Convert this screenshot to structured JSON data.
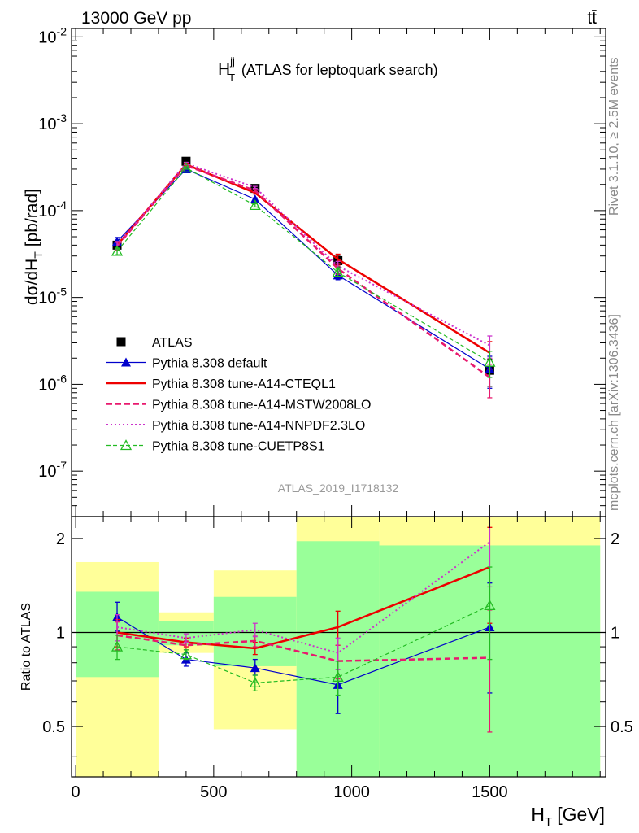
{
  "header": {
    "left": "13000 GeV pp",
    "right": "tt̄"
  },
  "side_labels": {
    "rivet": "Rivet 3.1.10, ≥ 2.5M events",
    "mcplots": "mcplots.cern.ch [arXiv:1306.3436]"
  },
  "chart_data": [
    {
      "type": "line",
      "title": "H_T^jj (ATLAS for leptoquark search)",
      "title_main": "H",
      "title_sub": "T",
      "title_sup": "jj",
      "title_rest": "(ATLAS for leptoquark search)",
      "ylabel": "dσ/dH_T [pb/rad]",
      "ylabel_main": "dσ/dH",
      "ylabel_sub": "T",
      "ylabel_rest": "[pb/rad]",
      "yscale": "log",
      "ylim": [
        3e-08,
        0.0125
      ],
      "xlim": [
        -15,
        1920
      ],
      "yticks": [
        1e-07,
        1e-06,
        1e-05,
        0.0001,
        0.001,
        0.01
      ],
      "ytick_labels": [
        {
          "base": "10",
          "exp": "-7"
        },
        {
          "base": "10",
          "exp": "-6"
        },
        {
          "base": "10",
          "exp": "-5"
        },
        {
          "base": "10",
          "exp": "-4"
        },
        {
          "base": "10",
          "exp": "-3"
        },
        {
          "base": "10",
          "exp": "-2"
        }
      ],
      "watermark": "ATLAS_2019_I1718132",
      "legend_position": "bottom-left",
      "x": [
        150,
        400,
        650,
        950,
        1500
      ],
      "series": [
        {
          "name": "ATLAS",
          "color": "#000000",
          "style": "data",
          "marker": "square",
          "values": [
            4e-05,
            0.00037,
            0.00018,
            2.65e-05,
            1.45e-06
          ],
          "err_low": [
            4e-06,
            2.5e-05,
            1.2e-05,
            4e-06,
            5e-07
          ],
          "err_high": [
            4e-06,
            2.5e-05,
            1.2e-05,
            4e-06,
            5e-07
          ]
        },
        {
          "name": "Pythia 8.308 default",
          "color": "#0000cc",
          "style": "solid",
          "marker": "triangle",
          "values": [
            4.4e-05,
            0.0003,
            0.000135,
            1.8e-05,
            1.5e-06
          ],
          "err_low": [
            5e-06,
            1e-05,
            5e-06,
            2e-06,
            6e-07
          ],
          "err_high": [
            5e-06,
            1e-05,
            5e-06,
            2e-06,
            6e-07
          ]
        },
        {
          "name": "Pythia 8.308 tune-A14-CTEQL1",
          "color": "#ee0000",
          "style": "solid-thick",
          "marker": "none",
          "values": [
            4e-05,
            0.00034,
            0.00016,
            2.75e-05,
            2.3e-06
          ],
          "err_low": [
            4e-06,
            1e-05,
            5e-06,
            4e-06,
            8e-07
          ],
          "err_high": [
            4e-06,
            1e-05,
            5e-06,
            4e-06,
            8e-07
          ]
        },
        {
          "name": "Pythia 8.308 tune-A14-MSTW2008LO",
          "color": "#e8196e",
          "style": "dashed",
          "marker": "none",
          "values": [
            3.9e-05,
            0.00033,
            0.00017,
            2.15e-05,
            1.2e-06
          ],
          "err_low": [
            4e-06,
            1e-05,
            5e-06,
            3e-06,
            5e-07
          ],
          "err_high": [
            4e-06,
            1e-05,
            5e-06,
            3e-06,
            5e-07
          ]
        },
        {
          "name": "Pythia 8.308 tune-A14-NNPDF2.3LO",
          "color": "#cc33cc",
          "style": "dotted",
          "marker": "none",
          "values": [
            4e-05,
            0.00035,
            0.000185,
            2.3e-05,
            2.8e-06
          ],
          "err_low": [
            4e-06,
            1e-05,
            5e-06,
            3e-06,
            8e-07
          ],
          "err_high": [
            4e-06,
            1e-05,
            5e-06,
            3e-06,
            8e-07
          ]
        },
        {
          "name": "Pythia 8.308 tune-CUETP8S1",
          "color": "#22bb22",
          "style": "dashed-thin",
          "marker": "open-triangle",
          "values": [
            3.4e-05,
            0.00031,
            0.000115,
            1.95e-05,
            1.8e-06
          ],
          "err_low": [
            3e-06,
            1e-05,
            5e-06,
            2e-06,
            6e-07
          ],
          "err_high": [
            3e-06,
            1e-05,
            5e-06,
            2e-06,
            6e-07
          ]
        }
      ]
    },
    {
      "type": "line",
      "ylabel": "Ratio to ATLAS",
      "yscale": "log",
      "ylim": [
        0.345,
        2.35
      ],
      "xlim": [
        -15,
        1920
      ],
      "xlabel": "H_T [GeV]",
      "xlabel_main": "H",
      "xlabel_sub": "T",
      "xlabel_rest": "[GeV]",
      "xticks": [
        0,
        500,
        1000,
        1500
      ],
      "xtick_labels": [
        "0",
        "500",
        "1000",
        "1500"
      ],
      "yticks": [
        0.5,
        1,
        2
      ],
      "ytick_labels": [
        "0.5",
        "1",
        "2"
      ],
      "reference_line": 1,
      "bands": [
        {
          "x0": 0,
          "x1": 300,
          "yellow": [
            0.28,
            1.68
          ],
          "green": [
            0.72,
            1.35
          ]
        },
        {
          "x0": 300,
          "x1": 500,
          "yellow": [
            0.86,
            1.16
          ],
          "green": [
            0.91,
            1.09
          ]
        },
        {
          "x0": 500,
          "x1": 800,
          "yellow": [
            0.49,
            1.58
          ],
          "green": [
            0.78,
            1.3
          ]
        },
        {
          "x0": 800,
          "x1": 1100,
          "yellow": [
            0.3,
            2.5
          ],
          "green": [
            0.3,
            1.96
          ]
        },
        {
          "x0": 1100,
          "x1": 1900,
          "yellow": [
            0.3,
            2.5
          ],
          "green": [
            0.3,
            1.9
          ]
        }
      ],
      "band_colors": {
        "yellow": "#ffff99",
        "green": "#99ff99"
      },
      "x": [
        150,
        400,
        650,
        950,
        1500
      ],
      "series": [
        {
          "name": "Pythia 8.308 default",
          "color": "#0000cc",
          "style": "solid",
          "marker": "triangle",
          "values": [
            1.12,
            0.82,
            0.77,
            0.68,
            1.04
          ],
          "err_low": [
            0.11,
            0.04,
            0.04,
            0.13,
            0.4
          ],
          "err_high": [
            0.13,
            0.04,
            0.05,
            0.13,
            0.4
          ]
        },
        {
          "name": "Pythia 8.308 tune-A14-CTEQL1",
          "color": "#ee0000",
          "style": "solid-thick",
          "marker": "none",
          "values": [
            1.0,
            0.93,
            0.89,
            1.04,
            1.62
          ],
          "err_low": [
            0.1,
            0.03,
            0.04,
            0.13,
            0.55
          ],
          "err_high": [
            0.1,
            0.03,
            0.04,
            0.13,
            0.55
          ]
        },
        {
          "name": "Pythia 8.308 tune-A14-MSTW2008LO",
          "color": "#e8196e",
          "style": "dashed",
          "marker": "none",
          "values": [
            0.98,
            0.91,
            0.94,
            0.81,
            0.83
          ],
          "err_low": [
            0.1,
            0.03,
            0.04,
            0.1,
            0.35
          ],
          "err_high": [
            0.1,
            0.03,
            0.04,
            0.1,
            0.35
          ]
        },
        {
          "name": "Pythia 8.308 tune-A14-NNPDF2.3LO",
          "color": "#cc33cc",
          "style": "dotted",
          "marker": "none",
          "values": [
            1.04,
            0.96,
            1.02,
            0.86,
            1.95
          ],
          "err_low": [
            0.1,
            0.03,
            0.05,
            0.1,
            0.55
          ],
          "err_high": [
            0.1,
            0.03,
            0.05,
            0.1,
            0.55
          ]
        },
        {
          "name": "Pythia 8.308 tune-CUETP8S1",
          "color": "#22bb22",
          "style": "dashed-thin",
          "marker": "open-triangle",
          "values": [
            0.9,
            0.85,
            0.69,
            0.72,
            1.22
          ],
          "err_low": [
            0.08,
            0.03,
            0.04,
            0.09,
            0.4
          ],
          "err_high": [
            0.08,
            0.03,
            0.04,
            0.09,
            0.4
          ]
        }
      ]
    }
  ]
}
